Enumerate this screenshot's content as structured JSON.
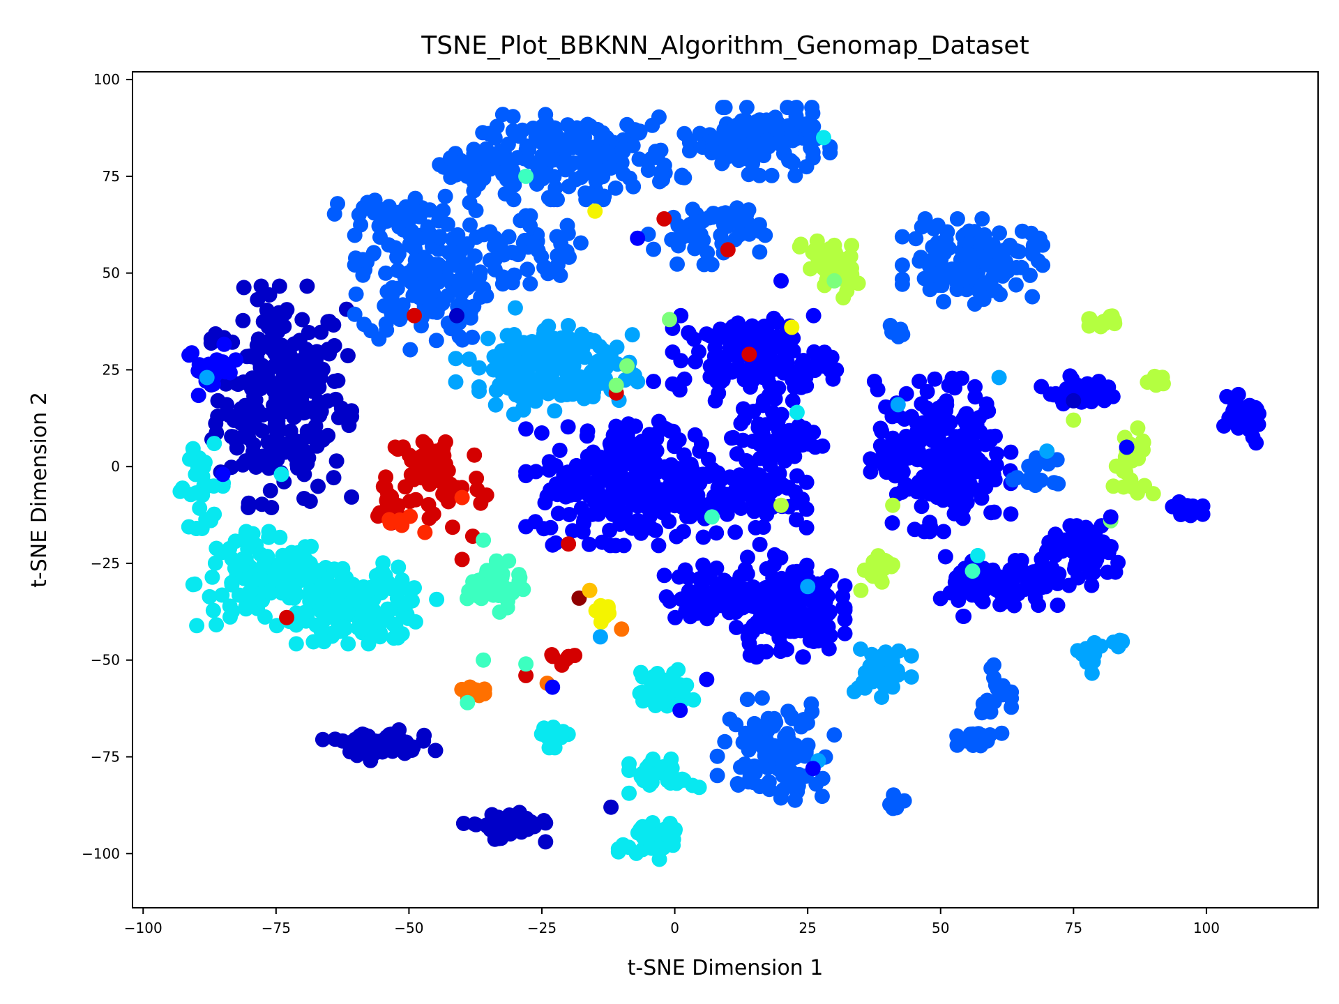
{
  "chart_data": {
    "type": "scatter",
    "title": "TSNE_Plot_BBKNN_Algorithm_Genomap_Dataset",
    "xlabel": "t-SNE Dimension 1",
    "ylabel": "t-SNE Dimension 2",
    "xlim": [
      -102,
      121
    ],
    "ylim": [
      -114,
      102
    ],
    "xticks": [
      -100,
      -75,
      -50,
      -25,
      0,
      25,
      50,
      75,
      100
    ],
    "yticks": [
      100,
      75,
      50,
      25,
      0,
      -25,
      -50,
      -75,
      -100
    ],
    "xtick_labels": [
      "−100",
      "−75",
      "−50",
      "−25",
      "0",
      "25",
      "50",
      "75",
      "100"
    ],
    "ytick_labels": [
      "100",
      "75",
      "50",
      "25",
      "0",
      "−25",
      "−50",
      "−75",
      "−100"
    ],
    "grid": false,
    "legend": false,
    "colormap": "jet",
    "colors": {
      "darkblue": "#0000c8",
      "blue": "#0000ff",
      "medblue": "#005cff",
      "lightblue": "#00a4ff",
      "cyan": "#08e8f0",
      "teal": "#3cffc0",
      "green": "#7cff7c",
      "lime": "#b4ff40",
      "yellow": "#f4f400",
      "gold": "#ffc000",
      "orange": "#ff7000",
      "redorange": "#ff2800",
      "red": "#d40000",
      "darkred": "#900000"
    },
    "clusters": [
      {
        "color": "darkblue",
        "cx": -74,
        "cy": 18,
        "sx": 6,
        "sy": 13,
        "n": 260
      },
      {
        "color": "blue",
        "cx": -87,
        "cy": 25,
        "sx": 2.5,
        "sy": 3,
        "n": 22
      },
      {
        "color": "cyan",
        "cx": -89,
        "cy": -5,
        "sx": 2.5,
        "sy": 5,
        "n": 26
      },
      {
        "color": "cyan",
        "cx": -78,
        "cy": -30,
        "sx": 6,
        "sy": 6,
        "n": 110
      },
      {
        "color": "cyan",
        "cx": -58,
        "cy": -37,
        "sx": 6,
        "sy": 4,
        "n": 110
      },
      {
        "color": "cyan",
        "cx": -65,
        "cy": -33,
        "sx": 5,
        "sy": 4,
        "n": 60
      },
      {
        "color": "red",
        "cx": -45,
        "cy": -3,
        "sx": 4.5,
        "sy": 7,
        "n": 60
      },
      {
        "color": "red",
        "cx": -53,
        "cy": -8,
        "sx": 2,
        "sy": 3,
        "n": 15
      },
      {
        "color": "redorange",
        "cx": -52,
        "cy": -14,
        "sx": 1.5,
        "sy": 1.5,
        "n": 6
      },
      {
        "color": "medblue",
        "cx": -47,
        "cy": 50,
        "sx": 6,
        "sy": 9,
        "n": 180
      },
      {
        "color": "medblue",
        "cx": -53,
        "cy": 65,
        "sx": 5,
        "sy": 2,
        "n": 30
      },
      {
        "color": "medblue",
        "cx": -37,
        "cy": 77,
        "sx": 5,
        "sy": 2.5,
        "n": 35
      },
      {
        "color": "medblue",
        "cx": -18,
        "cy": 80,
        "sx": 9,
        "sy": 5,
        "n": 180
      },
      {
        "color": "medblue",
        "cx": -26,
        "cy": 56,
        "sx": 5,
        "sy": 4,
        "n": 40
      },
      {
        "color": "medblue",
        "cx": 6,
        "cy": 61,
        "sx": 5,
        "sy": 4,
        "n": 60
      },
      {
        "color": "medblue",
        "cx": 16,
        "cy": 84,
        "sx": 6,
        "sy": 4,
        "n": 130
      },
      {
        "color": "medblue",
        "cx": 56,
        "cy": 53,
        "sx": 6,
        "sy": 5,
        "n": 130
      },
      {
        "color": "lightblue",
        "cx": -28,
        "cy": 28,
        "sx": 6,
        "sy": 4,
        "n": 80
      },
      {
        "color": "lightblue",
        "cx": -18,
        "cy": 24,
        "sx": 5,
        "sy": 5,
        "n": 70
      },
      {
        "color": "lightblue",
        "cx": -28,
        "cy": 20,
        "sx": 4,
        "sy": 3,
        "n": 30
      },
      {
        "color": "blue",
        "cx": -6,
        "cy": -5,
        "sx": 10,
        "sy": 7,
        "n": 300
      },
      {
        "color": "blue",
        "cx": -8,
        "cy": 7,
        "sx": 4,
        "sy": 3,
        "n": 30
      },
      {
        "color": "blue",
        "cx": 15,
        "cy": 28,
        "sx": 7,
        "sy": 5,
        "n": 150
      },
      {
        "color": "blue",
        "cx": 19,
        "cy": 7,
        "sx": 4,
        "sy": 4,
        "n": 60
      },
      {
        "color": "blue",
        "cx": 16,
        "cy": -7,
        "sx": 4,
        "sy": 4,
        "n": 50
      },
      {
        "color": "blue",
        "cx": 50,
        "cy": 3,
        "sx": 6,
        "sy": 9,
        "n": 240
      },
      {
        "color": "blue",
        "cx": 8,
        "cy": -33,
        "sx": 5,
        "sy": 3.5,
        "n": 70
      },
      {
        "color": "blue",
        "cx": 21,
        "cy": -36,
        "sx": 5,
        "sy": 6,
        "n": 160
      },
      {
        "color": "blue",
        "cx": 61,
        "cy": -31,
        "sx": 5,
        "sy": 3.5,
        "n": 90
      },
      {
        "color": "blue",
        "cx": 77,
        "cy": -23,
        "sx": 4,
        "sy": 3.5,
        "n": 70
      },
      {
        "color": "blue",
        "cx": 76,
        "cy": 19,
        "sx": 4,
        "sy": 2,
        "n": 30
      },
      {
        "color": "blue",
        "cx": 107,
        "cy": 12,
        "sx": 2.5,
        "sy": 3,
        "n": 35
      },
      {
        "color": "blue",
        "cx": 96,
        "cy": -11,
        "sx": 1.5,
        "sy": 2,
        "n": 12
      },
      {
        "color": "medblue",
        "cx": 19,
        "cy": -73,
        "sx": 5,
        "sy": 6,
        "n": 100
      },
      {
        "color": "medblue",
        "cx": 60,
        "cy": -57,
        "sx": 1.5,
        "sy": 3,
        "n": 18
      },
      {
        "color": "medblue",
        "cx": 56,
        "cy": -71,
        "sx": 2.5,
        "sy": 1,
        "n": 15
      },
      {
        "color": "medblue",
        "cx": 42,
        "cy": -86,
        "sx": 1,
        "sy": 1.2,
        "n": 8
      },
      {
        "color": "medblue",
        "cx": 68,
        "cy": -3,
        "sx": 2,
        "sy": 2.5,
        "n": 15
      },
      {
        "color": "medblue",
        "cx": 42,
        "cy": 35,
        "sx": 1,
        "sy": 1.5,
        "n": 5
      },
      {
        "color": "lightblue",
        "cx": 39,
        "cy": -53,
        "sx": 2.5,
        "sy": 3,
        "n": 40
      },
      {
        "color": "lightblue",
        "cx": 78,
        "cy": -49,
        "sx": 1,
        "sy": 2,
        "n": 12
      },
      {
        "color": "lightblue",
        "cx": 83,
        "cy": -45,
        "sx": 1.3,
        "sy": 0.7,
        "n": 7
      },
      {
        "color": "darkblue",
        "cx": -56,
        "cy": -72,
        "sx": 5,
        "sy": 1.8,
        "n": 55
      },
      {
        "color": "darkblue",
        "cx": -32,
        "cy": -93,
        "sx": 3.5,
        "sy": 1.8,
        "n": 45
      },
      {
        "color": "cyan",
        "cx": -2,
        "cy": -58,
        "sx": 2.5,
        "sy": 2.5,
        "n": 45
      },
      {
        "color": "cyan",
        "cx": -2,
        "cy": -80,
        "sx": 3,
        "sy": 2,
        "n": 35
      },
      {
        "color": "cyan",
        "cx": -4,
        "cy": -96,
        "sx": 3,
        "sy": 3,
        "n": 45
      },
      {
        "color": "cyan",
        "cx": -23,
        "cy": -70,
        "sx": 1.5,
        "sy": 1.2,
        "n": 15
      },
      {
        "color": "teal",
        "cx": -34,
        "cy": -31,
        "sx": 2.5,
        "sy": 3,
        "n": 50
      },
      {
        "color": "lime",
        "cx": 29,
        "cy": 52,
        "sx": 2.5,
        "sy": 4,
        "n": 45
      },
      {
        "color": "lime",
        "cx": 80,
        "cy": 37,
        "sx": 1.5,
        "sy": 1,
        "n": 12
      },
      {
        "color": "lime",
        "cx": 86,
        "cy": 2,
        "sx": 1.8,
        "sy": 4,
        "n": 30
      },
      {
        "color": "lime",
        "cx": 90,
        "cy": 22,
        "sx": 1,
        "sy": 0.8,
        "n": 7
      },
      {
        "color": "lime",
        "cx": 39,
        "cy": -27,
        "sx": 1.5,
        "sy": 1.8,
        "n": 15
      },
      {
        "color": "orange",
        "cx": -38,
        "cy": -58,
        "sx": 1,
        "sy": 1,
        "n": 15
      },
      {
        "color": "yellow",
        "cx": -13,
        "cy": -38,
        "sx": 1,
        "sy": 1,
        "n": 10
      },
      {
        "color": "red",
        "cx": -21,
        "cy": -50,
        "sx": 1,
        "sy": 1,
        "n": 6
      }
    ],
    "outliers": [
      {
        "x": -28,
        "y": 75,
        "c": "teal"
      },
      {
        "x": -15,
        "y": 66,
        "c": "yellow"
      },
      {
        "x": -49,
        "y": 39,
        "c": "red"
      },
      {
        "x": -41,
        "y": 39,
        "c": "darkblue"
      },
      {
        "x": -30,
        "y": 41,
        "c": "lightblue"
      },
      {
        "x": -88,
        "y": 23,
        "c": "lightblue"
      },
      {
        "x": -74,
        "y": -2,
        "c": "cyan"
      },
      {
        "x": -90,
        "y": -16,
        "c": "cyan"
      },
      {
        "x": -85,
        "y": -2,
        "c": "blue"
      },
      {
        "x": -73,
        "y": -39,
        "c": "red"
      },
      {
        "x": -55,
        "y": -27,
        "c": "cyan"
      },
      {
        "x": -52,
        "y": -26,
        "c": "cyan"
      },
      {
        "x": -40,
        "y": -8,
        "c": "redorange"
      },
      {
        "x": -47,
        "y": -17,
        "c": "redorange"
      },
      {
        "x": -38,
        "y": -18,
        "c": "red"
      },
      {
        "x": -40,
        "y": -24,
        "c": "red"
      },
      {
        "x": -36,
        "y": -19,
        "c": "teal"
      },
      {
        "x": -36,
        "y": -50,
        "c": "teal"
      },
      {
        "x": -39,
        "y": -61,
        "c": "teal"
      },
      {
        "x": -28,
        "y": -54,
        "c": "red"
      },
      {
        "x": -24,
        "y": -56,
        "c": "orange"
      },
      {
        "x": -23,
        "y": -57,
        "c": "blue"
      },
      {
        "x": -28,
        "y": -51,
        "c": "teal"
      },
      {
        "x": -20,
        "y": -20,
        "c": "red"
      },
      {
        "x": -18,
        "y": -34,
        "c": "darkred"
      },
      {
        "x": -16,
        "y": -32,
        "c": "gold"
      },
      {
        "x": -10,
        "y": -42,
        "c": "orange"
      },
      {
        "x": -14,
        "y": -44,
        "c": "lightblue"
      },
      {
        "x": -12,
        "y": -88,
        "c": "darkblue"
      },
      {
        "x": -11,
        "y": 19,
        "c": "red"
      },
      {
        "x": -11,
        "y": 21,
        "c": "green"
      },
      {
        "x": -9,
        "y": 26,
        "c": "green"
      },
      {
        "x": -7,
        "y": 59,
        "c": "blue"
      },
      {
        "x": -2,
        "y": 64,
        "c": "red"
      },
      {
        "x": 10,
        "y": 56,
        "c": "red"
      },
      {
        "x": -1,
        "y": 38,
        "c": "green"
      },
      {
        "x": 14,
        "y": 29,
        "c": "red"
      },
      {
        "x": 22,
        "y": 36,
        "c": "yellow"
      },
      {
        "x": -4,
        "y": 22,
        "c": "blue"
      },
      {
        "x": 7,
        "y": -13,
        "c": "teal"
      },
      {
        "x": 20,
        "y": -10,
        "c": "lime"
      },
      {
        "x": 1,
        "y": -63,
        "c": "blue"
      },
      {
        "x": 6,
        "y": -55,
        "c": "blue"
      },
      {
        "x": 25,
        "y": -31,
        "c": "lightblue"
      },
      {
        "x": 27,
        "y": -76,
        "c": "lightblue"
      },
      {
        "x": 26,
        "y": -78,
        "c": "blue"
      },
      {
        "x": 28,
        "y": 85,
        "c": "cyan"
      },
      {
        "x": 20,
        "y": 48,
        "c": "blue"
      },
      {
        "x": 30,
        "y": 48,
        "c": "green"
      },
      {
        "x": 35,
        "y": -32,
        "c": "lime"
      },
      {
        "x": 41,
        "y": -10,
        "c": "lime"
      },
      {
        "x": 42,
        "y": 16,
        "c": "lightblue"
      },
      {
        "x": 57,
        "y": -23,
        "c": "cyan"
      },
      {
        "x": 56,
        "y": -27,
        "c": "teal"
      },
      {
        "x": 61,
        "y": 23,
        "c": "lightblue"
      },
      {
        "x": 70,
        "y": 4,
        "c": "lightblue"
      },
      {
        "x": 75,
        "y": 12,
        "c": "lime"
      },
      {
        "x": 82,
        "y": -14,
        "c": "green"
      },
      {
        "x": 82,
        "y": -13,
        "c": "blue"
      },
      {
        "x": 90,
        "y": -7,
        "c": "lime"
      },
      {
        "x": 85,
        "y": 5,
        "c": "blue"
      },
      {
        "x": 75,
        "y": 17,
        "c": "darkblue"
      },
      {
        "x": 23,
        "y": 14,
        "c": "cyan"
      }
    ]
  }
}
